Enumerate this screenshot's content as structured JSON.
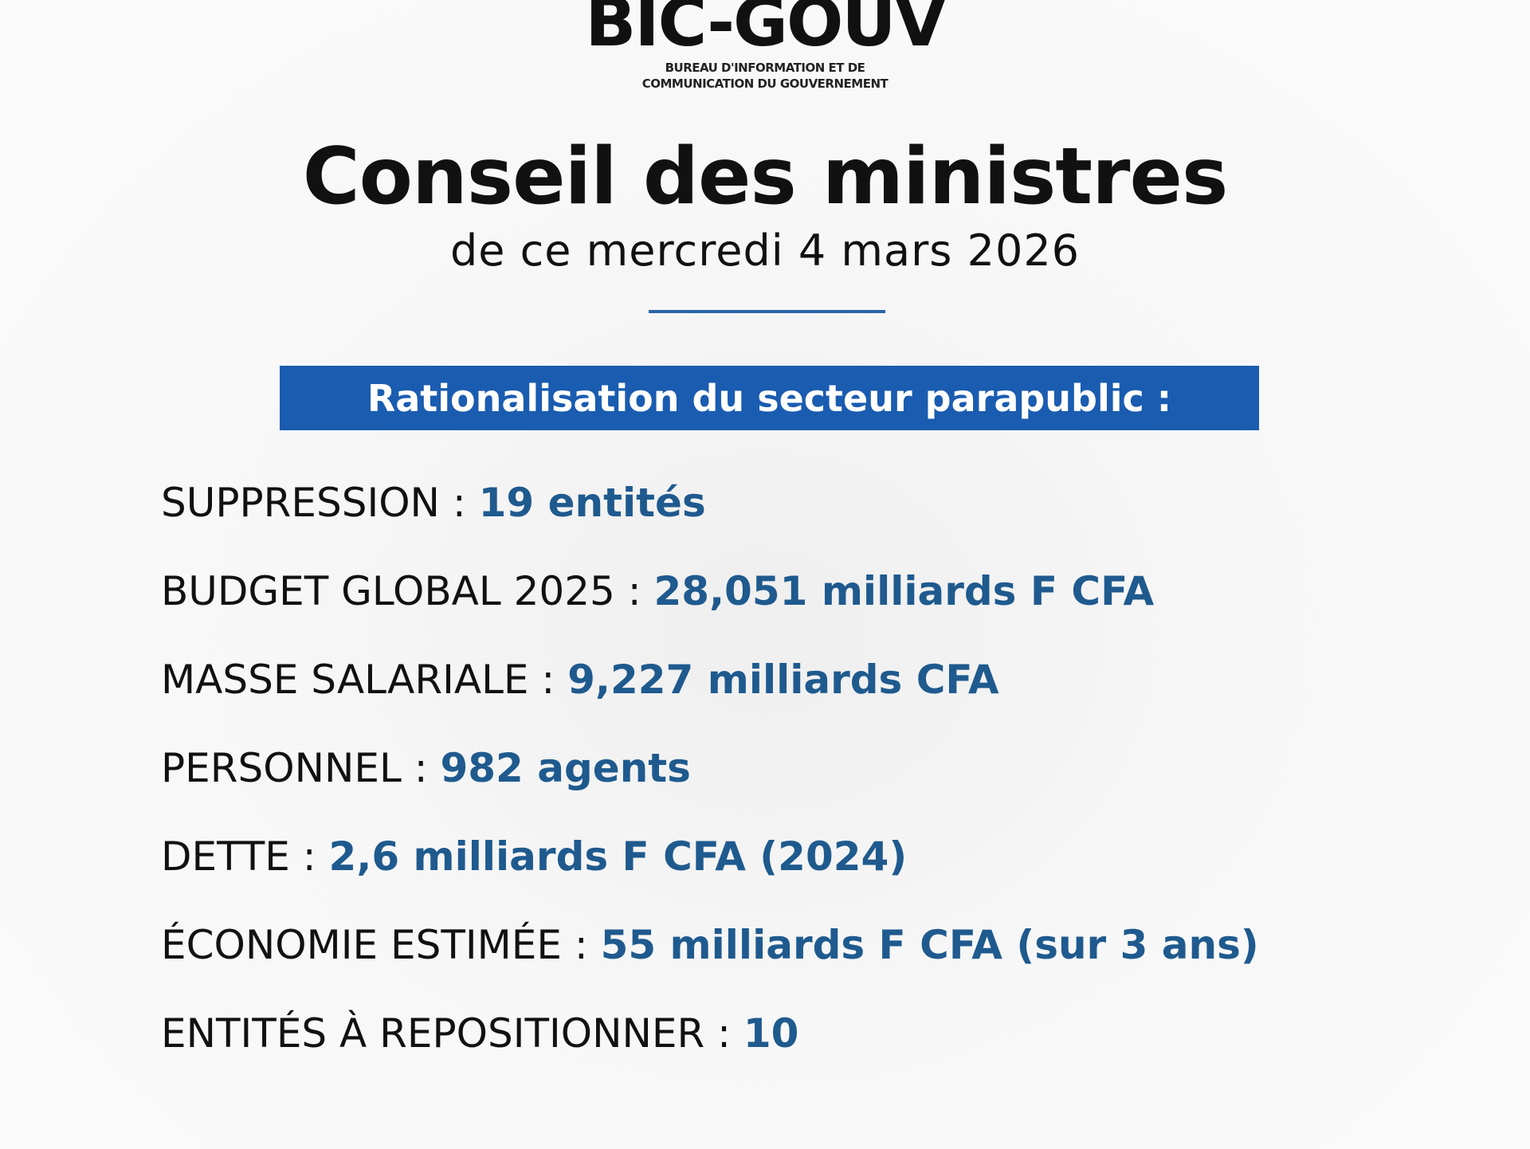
{
  "logo": {
    "name": "BIC-GOUV",
    "line1": "BUREAU D'INFORMATION ET DE",
    "line2": "COMMUNICATION DU GOUVERNEMENT"
  },
  "title": "Conseil des ministres",
  "date": "de ce mercredi 4 mars 2026",
  "banner": "Rationalisation du secteur parapublic :",
  "items": [
    {
      "label": "SUPPRESSION : ",
      "value": "19 entités"
    },
    {
      "label": "BUDGET GLOBAL 2025 : ",
      "value": "28,051 milliards F CFA"
    },
    {
      "label": "MASSE SALARIALE : ",
      "value": "9,227 milliards CFA"
    },
    {
      "label": "PERSONNEL : ",
      "value": "982 agents"
    },
    {
      "label": "DETTE : ",
      "value": "2,6 milliards F CFA (2024)"
    },
    {
      "label": "ÉCONOMIE ESTIMÉE : ",
      "value": "55 milliards F CFA (sur 3 ans)"
    },
    {
      "label": "ENTITÉS À REPOSITIONNER : ",
      "value": "10"
    }
  ],
  "colors": {
    "banner": "#1a5cb0",
    "value": "#1f5a8e",
    "rule": "#2a64a8"
  }
}
